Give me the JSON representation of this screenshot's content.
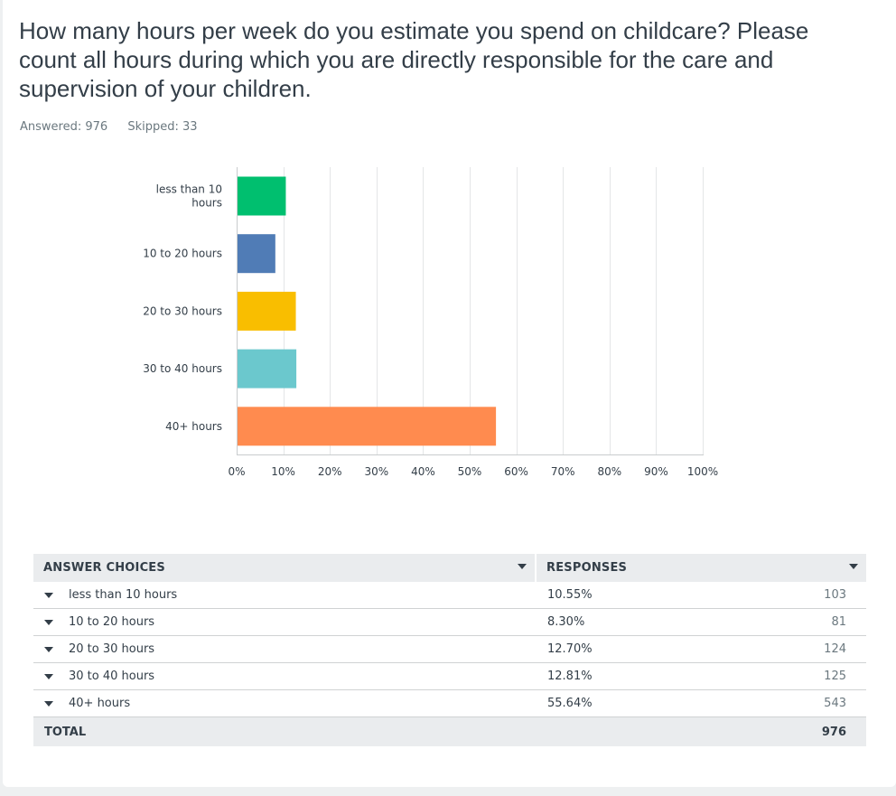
{
  "question": {
    "title": "How many hours per week do you estimate you spend on childcare? Please count all hours during which you are directly responsible for the care and supervision of your children.",
    "answered_label": "Answered: 976",
    "skipped_label": "Skipped: 33"
  },
  "chart_data": {
    "type": "bar",
    "orientation": "horizontal",
    "categories": [
      [
        "less than 10",
        "hours"
      ],
      [
        "10 to 20 hours"
      ],
      [
        "20 to 30 hours"
      ],
      [
        "30 to 40 hours"
      ],
      [
        "40+ hours"
      ]
    ],
    "values": [
      10.55,
      8.3,
      12.7,
      12.81,
      55.64
    ],
    "colors": [
      "#00bf6f",
      "#507cb6",
      "#f9be00",
      "#6bc8cd",
      "#ff8b4f"
    ],
    "xlim": [
      0,
      100
    ],
    "ticks": [
      "0%",
      "10%",
      "20%",
      "30%",
      "40%",
      "50%",
      "60%",
      "70%",
      "80%",
      "90%",
      "100%"
    ],
    "grid": true,
    "title": "",
    "xlabel": "",
    "ylabel": ""
  },
  "table": {
    "col1_header": "ANSWER CHOICES",
    "col2_header": "RESPONSES",
    "rows": [
      {
        "choice": "less than 10 hours",
        "percent": "10.55%",
        "count": "103"
      },
      {
        "choice": "10 to 20 hours",
        "percent": "8.30%",
        "count": "81"
      },
      {
        "choice": "20 to 30 hours",
        "percent": "12.70%",
        "count": "124"
      },
      {
        "choice": "30 to 40 hours",
        "percent": "12.81%",
        "count": "125"
      },
      {
        "choice": "40+ hours",
        "percent": "55.64%",
        "count": "543"
      }
    ],
    "total_label": "TOTAL",
    "total_value": "976"
  }
}
